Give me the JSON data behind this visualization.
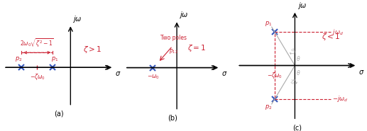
{
  "fig_width": 5.17,
  "fig_height": 1.85,
  "dpi": 100,
  "panel_labels": [
    "(a)",
    "(b)",
    "(c)"
  ],
  "axis_color": "black",
  "pole_color": "#3355bb",
  "red_color": "#cc2233",
  "gray_color": "#aaaaaa",
  "label_a": "$\\zeta > 1$",
  "label_b": "$\\zeta = 1$",
  "label_c": "$\\zeta < 1$",
  "sigma_label": "$\\sigma$",
  "jomega_label": "$j\\omega$",
  "two_poles_label": "Two poles",
  "p12_label": "$p_{12}$",
  "p1_label": "$p_1$",
  "p2_label": "$p_2$",
  "neg_zeta_omega0_a": "$-\\zeta\\omega_0$",
  "neg_omega0_b": "$-\\omega_0$",
  "neg_zeta_omega0_c": "$-\\zeta\\omega_0$",
  "jomega_d_label": "$j\\omega_d$",
  "neg_jomega_d_label": "$-j\\omega_d$",
  "distance_label": "$2\\omega_0\\sqrt{\\zeta^2-1}$"
}
